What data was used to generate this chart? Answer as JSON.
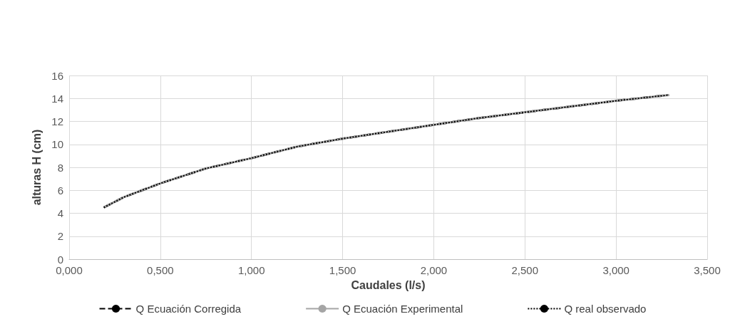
{
  "chart_data": {
    "type": "line",
    "xlabel": "Caudales (l/s)",
    "ylabel": "alturas H (cm)",
    "x": [
      0.19,
      0.3,
      0.5,
      0.75,
      1.0,
      1.25,
      1.5,
      1.75,
      2.0,
      2.25,
      2.5,
      2.75,
      3.0,
      3.29
    ],
    "series": [
      {
        "name": "Q Ecuación Corregida",
        "color": "#000000",
        "line_style": "dashed",
        "values": [
          4.5,
          5.4,
          6.6,
          7.9,
          8.8,
          9.8,
          10.5,
          11.1,
          11.7,
          12.3,
          12.8,
          13.3,
          13.8,
          14.3
        ]
      },
      {
        "name": "Q Ecuación Experimental",
        "color": "#a5a5a5",
        "line_style": "solid",
        "values": [
          4.5,
          5.4,
          6.6,
          7.9,
          8.8,
          9.8,
          10.5,
          11.1,
          11.7,
          12.3,
          12.8,
          13.3,
          13.8,
          14.3
        ]
      },
      {
        "name": "Q real observado",
        "color": "#000000",
        "line_style": "dotted",
        "values": [
          4.5,
          5.4,
          6.6,
          7.9,
          8.8,
          9.8,
          10.5,
          11.1,
          11.7,
          12.3,
          12.8,
          13.3,
          13.8,
          14.3
        ]
      }
    ],
    "xlim": [
      0,
      3.5
    ],
    "xticks": [
      {
        "value": 0,
        "label": "0,000"
      },
      {
        "value": 0.5,
        "label": "0,500"
      },
      {
        "value": 1,
        "label": "1,000"
      },
      {
        "value": 1.5,
        "label": "1,500"
      },
      {
        "value": 2,
        "label": "2,000"
      },
      {
        "value": 2.5,
        "label": "2,500"
      },
      {
        "value": 3,
        "label": "3,000"
      },
      {
        "value": 3.5,
        "label": "3,500"
      }
    ],
    "ylim": [
      0,
      16
    ],
    "yticks": [
      0,
      2,
      4,
      6,
      8,
      10,
      12,
      14,
      16
    ],
    "grid": true,
    "legend": "bottom",
    "marker": "none"
  }
}
